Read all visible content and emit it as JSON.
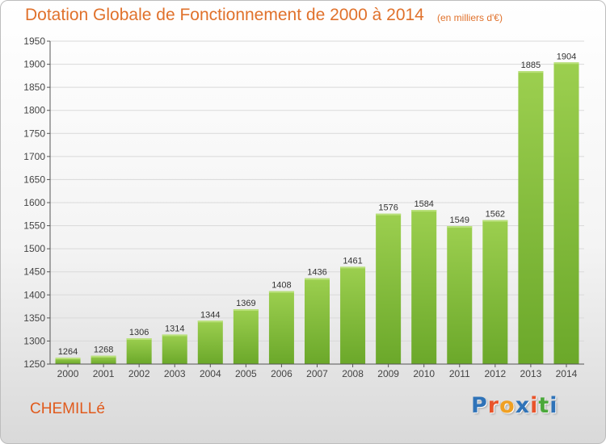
{
  "header": {
    "title": "Dotation Globale de Fonctionnement de 2000 à 2014",
    "unit": "(en milliers d'€)"
  },
  "footer": {
    "commune": "CHEMILLé",
    "logo_text": "Proxiti",
    "logo_colors": [
      "#2f73b8",
      "#e8542b",
      "#f0a022",
      "#2f73b8",
      "#e8542b",
      "#4aa83a",
      "#2f73b8"
    ]
  },
  "colors": {
    "bar_top": "#9ccf4f",
    "bar_bottom": "#6ba82a",
    "grid": "#d9d9d9",
    "axis": "#555555",
    "title": "#e0712b"
  },
  "chart_data": {
    "type": "bar",
    "categories": [
      "2000",
      "2001",
      "2002",
      "2003",
      "2004",
      "2005",
      "2006",
      "2007",
      "2008",
      "2009",
      "2010",
      "2011",
      "2012",
      "2013",
      "2014"
    ],
    "values": [
      1264,
      1268,
      1306,
      1314,
      1344,
      1369,
      1408,
      1436,
      1461,
      1576,
      1584,
      1549,
      1562,
      1885,
      1904
    ],
    "ylim": [
      1250,
      1950
    ],
    "yticks": [
      1250,
      1300,
      1350,
      1400,
      1450,
      1500,
      1550,
      1600,
      1650,
      1700,
      1750,
      1800,
      1850,
      1900,
      1950
    ],
    "grid": true
  }
}
